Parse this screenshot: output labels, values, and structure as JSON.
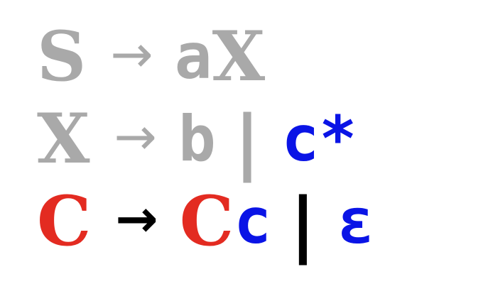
{
  "colors": {
    "faded": "#a9a9a9",
    "red": "#e32b21",
    "blue": "#0a14e6",
    "black": "#000000"
  },
  "rules": [
    {
      "lhs": "S",
      "arrow": "→",
      "rhs_part1": "a",
      "rhs_part2": "X"
    },
    {
      "lhs": "X",
      "arrow": "→",
      "alt1": "b",
      "separator": "|",
      "alt2": "c*"
    },
    {
      "lhs": "C",
      "arrow": "→",
      "alt1_nt": "C",
      "alt1_term": "c",
      "separator": "|",
      "alt2": "ε"
    }
  ]
}
